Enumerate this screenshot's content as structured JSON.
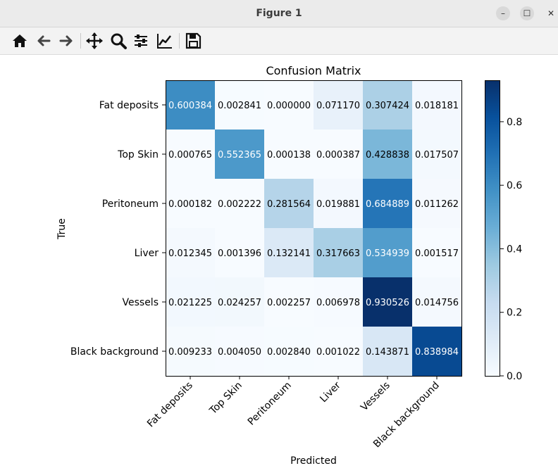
{
  "window": {
    "title": "Figure 1"
  },
  "toolbar": {
    "buttons": [
      "home-icon",
      "back-arrow-icon",
      "forward-arrow-icon",
      "pan-move-icon",
      "zoom-magnifier-icon",
      "configure-subplots-icon",
      "edit-axes-icon",
      "save-floppy-icon"
    ]
  },
  "chart_data": {
    "type": "heatmap",
    "title": "Confusion Matrix",
    "xlabel": "Predicted",
    "ylabel": "True",
    "x_categories": [
      "Fat deposits",
      "Top Skin",
      "Peritoneum",
      "Liver",
      "Vessels",
      "Black background"
    ],
    "y_categories": [
      "Fat deposits",
      "Top Skin",
      "Peritoneum",
      "Liver",
      "Vessels",
      "Black background"
    ],
    "values": [
      [
        0.600384,
        0.002841,
        0.0,
        0.07117,
        0.307424,
        0.018181
      ],
      [
        0.000765,
        0.552365,
        0.000138,
        0.000387,
        0.428838,
        0.017507
      ],
      [
        0.000182,
        0.002222,
        0.281564,
        0.019881,
        0.684889,
        0.011262
      ],
      [
        0.012345,
        0.001396,
        0.132141,
        0.317663,
        0.534939,
        0.001517
      ],
      [
        0.021225,
        0.024257,
        0.002257,
        0.006978,
        0.930526,
        0.014756
      ],
      [
        0.009233,
        0.00405,
        0.00284,
        0.001022,
        0.143871,
        0.838984
      ]
    ],
    "colormap": "Blues",
    "colorbar": {
      "range": [
        0,
        0.930526
      ],
      "ticks": [
        "0.0",
        "0.2",
        "0.4",
        "0.6",
        "0.8"
      ]
    }
  }
}
